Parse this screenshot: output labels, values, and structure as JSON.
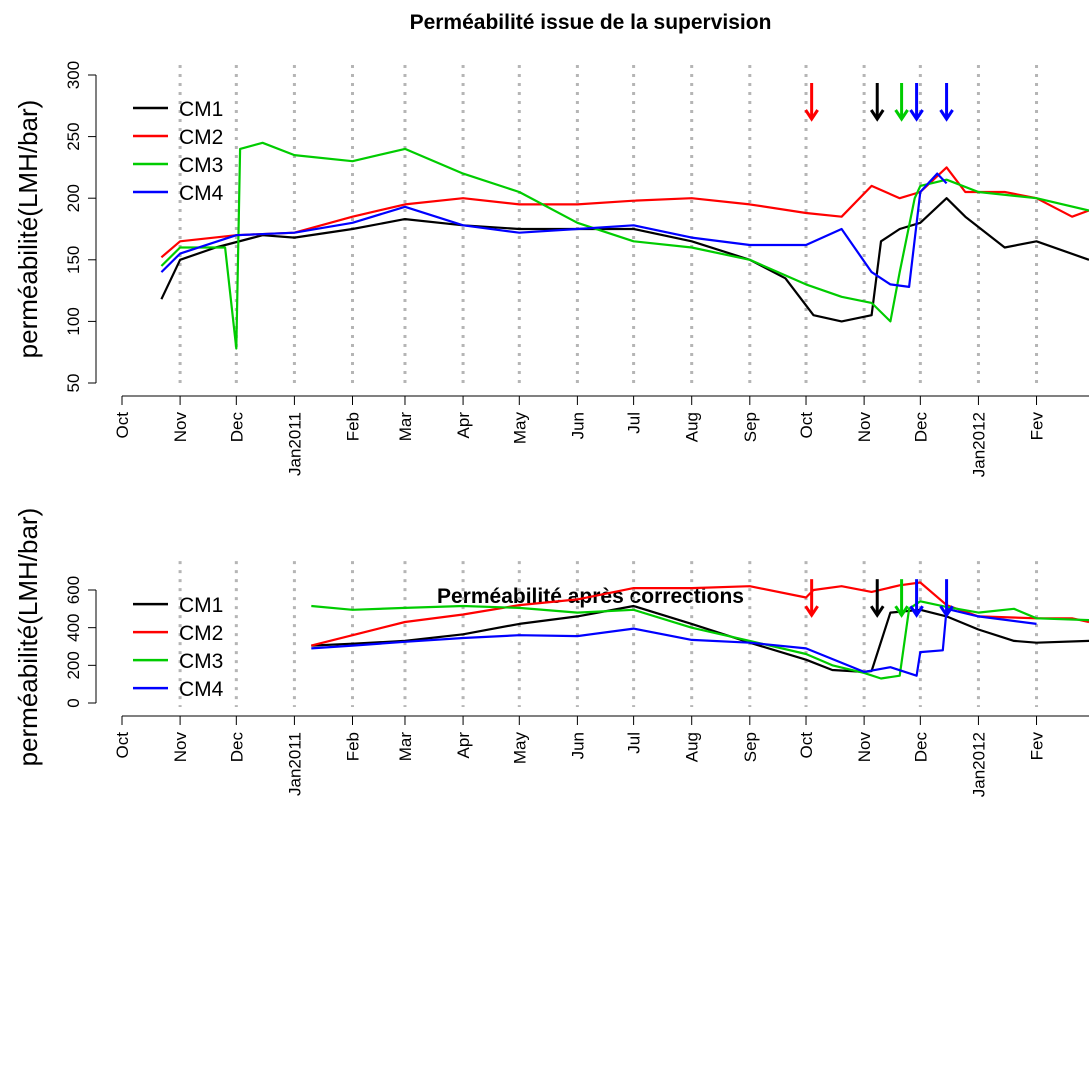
{
  "chart_data": [
    {
      "type": "line",
      "title": "Perméabilité issue de la supervision",
      "xlabel": "",
      "ylabel": "perméabilité(LMH/bar)",
      "ylim": [
        50,
        300
      ],
      "yticks": [
        50,
        100,
        150,
        200,
        250,
        300
      ],
      "xlim": [
        "2010-10-01",
        "2012-02-29"
      ],
      "xtick_dates": [
        "2010-10-01",
        "2010-11-01",
        "2010-12-01",
        "2011-01-01",
        "2011-02-01",
        "2011-03-01",
        "2011-04-01",
        "2011-05-01",
        "2011-06-01",
        "2011-07-01",
        "2011-08-01",
        "2011-09-01",
        "2011-10-01",
        "2011-11-01",
        "2011-12-01",
        "2012-01-01",
        "2012-02-01"
      ],
      "xtick_labels": [
        "Oct",
        "Nov",
        "Dec",
        "Jan2011",
        "Feb",
        "Mar",
        "Apr",
        "May",
        "Jun",
        "Jul",
        "Aug",
        "Sep",
        "Oct",
        "Nov",
        "Dec",
        "Jan2012",
        "Fev"
      ],
      "grid": "vertical-dotted",
      "legend_position": "top-left",
      "series": [
        {
          "name": "CM1",
          "color": "#000000",
          "x": [
            "2010-10-22",
            "2010-11-01",
            "2010-11-20",
            "2010-12-15",
            "2011-01-01",
            "2011-02-01",
            "2011-03-01",
            "2011-04-01",
            "2011-05-01",
            "2011-06-01",
            "2011-07-01",
            "2011-08-01",
            "2011-09-01",
            "2011-09-20",
            "2011-10-05",
            "2011-10-20",
            "2011-11-05",
            "2011-11-10",
            "2011-11-20",
            "2011-12-01",
            "2011-12-15",
            "2011-12-25",
            "2012-01-15",
            "2012-02-01",
            "2012-02-29"
          ],
          "values": [
            118,
            150,
            160,
            170,
            168,
            175,
            183,
            178,
            175,
            175,
            175,
            165,
            150,
            135,
            105,
            100,
            105,
            165,
            175,
            180,
            200,
            185,
            160,
            165,
            150
          ]
        },
        {
          "name": "CM2",
          "color": "#ff0000",
          "x": [
            "2010-10-22",
            "2010-11-01",
            "2010-12-01",
            "2011-01-01",
            "2011-02-01",
            "2011-03-01",
            "2011-04-01",
            "2011-05-01",
            "2011-06-01",
            "2011-07-01",
            "2011-08-01",
            "2011-09-01",
            "2011-10-01",
            "2011-10-20",
            "2011-11-05",
            "2011-11-20",
            "2011-12-01",
            "2011-12-15",
            "2011-12-25",
            "2012-01-15",
            "2012-02-01",
            "2012-02-20",
            "2012-02-29"
          ],
          "values": [
            152,
            165,
            170,
            172,
            185,
            195,
            200,
            195,
            195,
            198,
            200,
            195,
            188,
            185,
            210,
            200,
            205,
            225,
            205,
            205,
            200,
            185,
            190
          ]
        },
        {
          "name": "CM3",
          "color": "#00cc00",
          "x": [
            "2010-10-22",
            "2010-11-01",
            "2010-11-25",
            "2010-12-01",
            "2010-12-03",
            "2010-12-15",
            "2011-01-01",
            "2011-02-01",
            "2011-03-01",
            "2011-04-01",
            "2011-05-01",
            "2011-06-01",
            "2011-07-01",
            "2011-08-01",
            "2011-09-01",
            "2011-10-01",
            "2011-10-20",
            "2011-11-05",
            "2011-11-15",
            "2011-11-20",
            "2011-11-28",
            "2011-12-01",
            "2011-12-15",
            "2012-01-01",
            "2012-02-01",
            "2012-02-29"
          ],
          "values": [
            145,
            160,
            160,
            78,
            240,
            245,
            235,
            230,
            240,
            220,
            205,
            180,
            165,
            160,
            150,
            130,
            120,
            115,
            100,
            140,
            200,
            210,
            215,
            205,
            200,
            190
          ]
        },
        {
          "name": "CM4",
          "color": "#0000ff",
          "x": [
            "2010-10-22",
            "2010-11-01",
            "2010-12-01",
            "2011-01-01",
            "2011-02-01",
            "2011-03-01",
            "2011-04-01",
            "2011-05-01",
            "2011-06-01",
            "2011-07-01",
            "2011-08-01",
            "2011-09-01",
            "2011-10-01",
            "2011-10-20",
            "2011-11-05",
            "2011-11-15",
            "2011-11-25",
            "2011-12-01",
            "2011-12-10",
            "2011-12-15"
          ],
          "values": [
            140,
            155,
            170,
            172,
            180,
            193,
            178,
            172,
            175,
            178,
            168,
            162,
            162,
            175,
            140,
            130,
            128,
            205,
            220,
            212
          ]
        }
      ],
      "arrows": [
        {
          "date": "2011-10-04",
          "color": "#ff0000"
        },
        {
          "date": "2011-11-08",
          "color": "#000000"
        },
        {
          "date": "2011-11-21",
          "color": "#00cc00"
        },
        {
          "date": "2011-11-29",
          "color": "#0000ff"
        },
        {
          "date": "2011-12-15",
          "color": "#0000ff"
        }
      ]
    },
    {
      "type": "line",
      "title": "Perméabilité après corrections",
      "xlabel": "",
      "ylabel": "perméabilité(LMH/bar)",
      "ylim": [
        0,
        700
      ],
      "yticks": [
        0,
        200,
        400,
        600
      ],
      "xlim": [
        "2010-10-01",
        "2012-02-29"
      ],
      "xtick_dates": [
        "2010-10-01",
        "2010-11-01",
        "2010-12-01",
        "2011-01-01",
        "2011-02-01",
        "2011-03-01",
        "2011-04-01",
        "2011-05-01",
        "2011-06-01",
        "2011-07-01",
        "2011-08-01",
        "2011-09-01",
        "2011-10-01",
        "2011-11-01",
        "2011-12-01",
        "2012-01-01",
        "2012-02-01"
      ],
      "xtick_labels": [
        "Oct",
        "Nov",
        "Dec",
        "Jan2011",
        "Feb",
        "Mar",
        "Apr",
        "May",
        "Jun",
        "Jul",
        "Aug",
        "Sep",
        "Oct",
        "Nov",
        "Dec",
        "Jan2012",
        "Fev"
      ],
      "grid": "vertical-dotted",
      "legend_position": "top-left",
      "series": [
        {
          "name": "CM1",
          "color": "#000000",
          "x": [
            "2011-01-10",
            "2011-02-01",
            "2011-03-01",
            "2011-04-01",
            "2011-05-01",
            "2011-06-01",
            "2011-07-01",
            "2011-08-01",
            "2011-09-01",
            "2011-10-01",
            "2011-10-15",
            "2011-11-01",
            "2011-11-05",
            "2011-11-15",
            "2011-12-01",
            "2011-12-15",
            "2012-01-01",
            "2012-01-20",
            "2012-02-01",
            "2012-02-29"
          ],
          "values": [
            305,
            315,
            330,
            365,
            420,
            460,
            515,
            420,
            320,
            230,
            175,
            165,
            170,
            480,
            495,
            460,
            390,
            330,
            320,
            330
          ]
        },
        {
          "name": "CM2",
          "color": "#ff0000",
          "x": [
            "2011-01-10",
            "2011-02-01",
            "2011-03-01",
            "2011-04-01",
            "2011-05-01",
            "2011-06-01",
            "2011-07-01",
            "2011-08-01",
            "2011-09-01",
            "2011-10-01",
            "2011-10-05",
            "2011-10-20",
            "2011-11-05",
            "2011-11-20",
            "2011-12-01",
            "2011-12-15",
            "2012-01-01",
            "2012-02-01",
            "2012-02-20",
            "2012-02-29"
          ],
          "values": [
            305,
            360,
            430,
            470,
            520,
            550,
            610,
            610,
            620,
            560,
            600,
            620,
            590,
            625,
            640,
            520,
            460,
            450,
            450,
            430
          ]
        },
        {
          "name": "CM3",
          "color": "#00cc00",
          "x": [
            "2011-01-10",
            "2011-02-01",
            "2011-03-01",
            "2011-04-01",
            "2011-05-01",
            "2011-06-01",
            "2011-07-01",
            "2011-08-01",
            "2011-09-01",
            "2011-10-01",
            "2011-10-15",
            "2011-11-01",
            "2011-11-10",
            "2011-11-20",
            "2011-11-25",
            "2011-12-01",
            "2011-12-15",
            "2012-01-01",
            "2012-01-20",
            "2012-02-01",
            "2012-02-29"
          ],
          "values": [
            515,
            495,
            505,
            515,
            505,
            480,
            495,
            400,
            330,
            260,
            200,
            160,
            130,
            145,
            500,
            540,
            510,
            480,
            500,
            450,
            440
          ]
        },
        {
          "name": "CM4",
          "color": "#0000ff",
          "x": [
            "2011-01-10",
            "2011-02-01",
            "2011-03-01",
            "2011-04-01",
            "2011-05-01",
            "2011-06-01",
            "2011-07-01",
            "2011-08-01",
            "2011-09-01",
            "2011-10-01",
            "2011-11-01",
            "2011-11-15",
            "2011-11-29",
            "2011-12-01",
            "2011-12-13",
            "2011-12-15",
            "2012-01-01",
            "2012-02-01"
          ],
          "values": [
            290,
            305,
            325,
            345,
            360,
            355,
            395,
            335,
            320,
            290,
            165,
            190,
            145,
            270,
            280,
            500,
            460,
            420
          ]
        }
      ],
      "arrows": [
        {
          "date": "2011-10-04",
          "color": "#ff0000"
        },
        {
          "date": "2011-11-08",
          "color": "#000000"
        },
        {
          "date": "2011-11-21",
          "color": "#00cc00"
        },
        {
          "date": "2011-11-29",
          "color": "#0000ff"
        },
        {
          "date": "2011-12-15",
          "color": "#0000ff"
        }
      ]
    }
  ]
}
